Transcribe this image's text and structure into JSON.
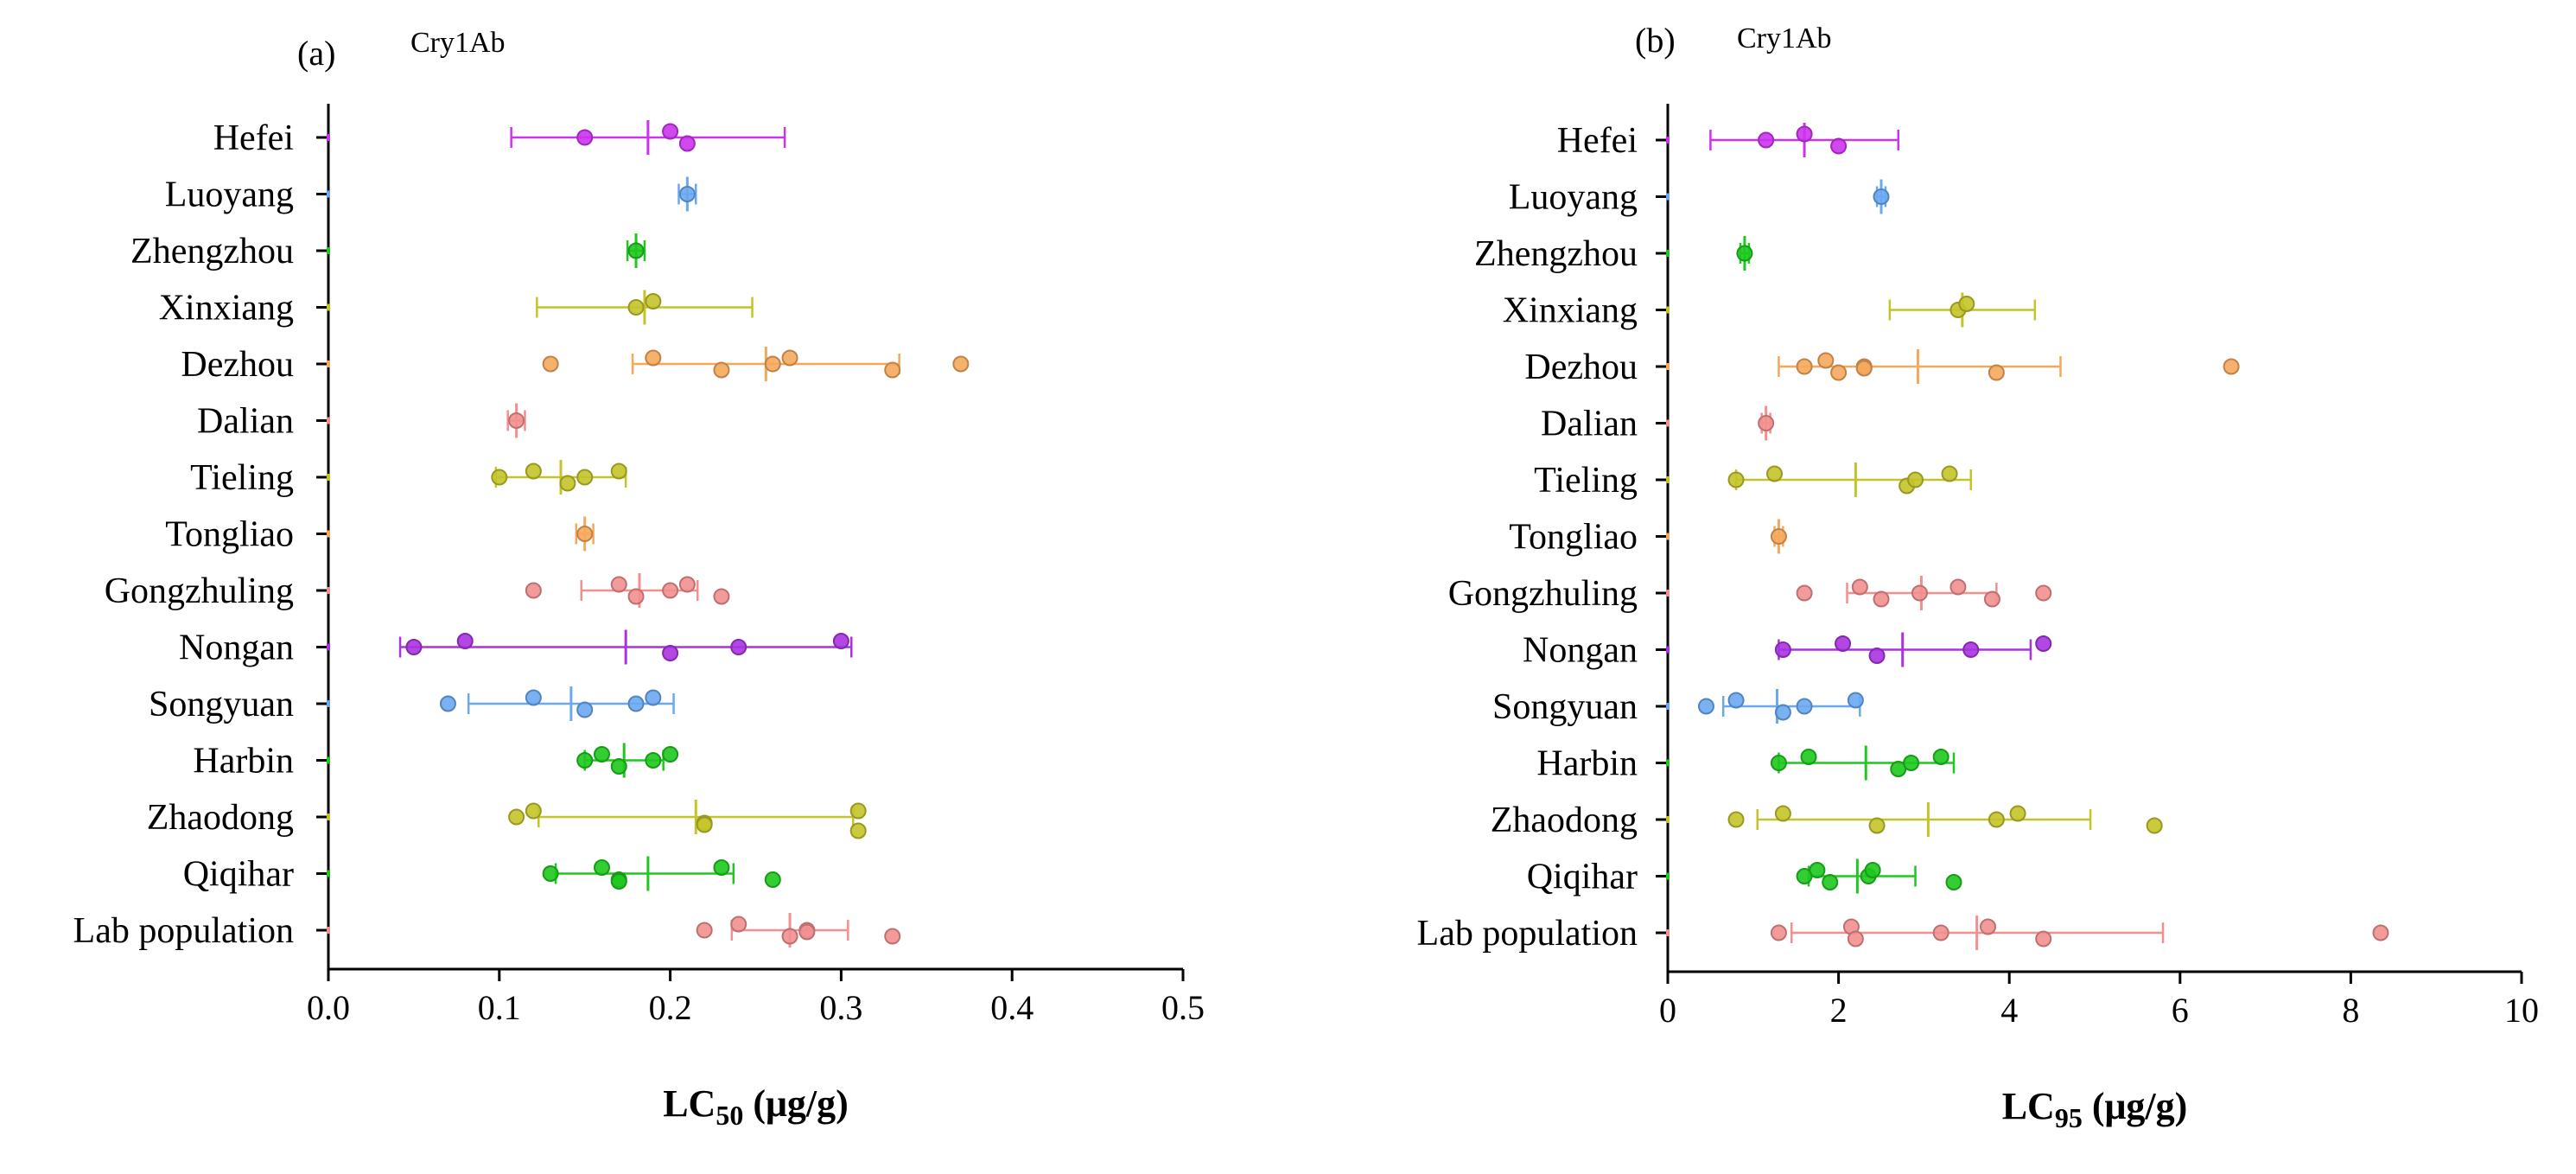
{
  "chart_data": [
    {
      "type": "scatter",
      "panel_label": "(a)",
      "subtitle": "Cry1Ab",
      "xlabel_main": "LC",
      "xlabel_sub": "50",
      "xlabel_units": " (μg/g)",
      "xlim": [
        0,
        0.5
      ],
      "xticks": [
        0,
        0.1,
        0.2,
        0.3,
        0.4,
        0.5
      ],
      "xtick_labels": [
        "0.0",
        "0.1",
        "0.2",
        "0.3",
        "0.4",
        "0.5"
      ],
      "categories": [
        "Hefei",
        "Luoyang",
        "Zhengzhou",
        "Xinxiang",
        "Dezhou",
        "Dalian",
        "Tieling",
        "Tongliao ",
        "Gongzhuling",
        "Nongan",
        "Songyuan",
        "Harbin",
        "Zhaodong",
        "Qiqihar",
        "Lab population"
      ],
      "series": [
        {
          "name": "Hefei",
          "color": "#cc33ee",
          "points": [
            0.15,
            0.2,
            0.21
          ],
          "mean": 0.187,
          "err": [
            0.107,
            0.267
          ]
        },
        {
          "name": "Luoyang",
          "color": "#6aa9f2",
          "points": [
            0.21
          ],
          "mean": 0.21,
          "err": [
            0.205,
            0.215
          ]
        },
        {
          "name": "Zhengzhou",
          "color": "#1ec81e",
          "points": [
            0.18
          ],
          "mean": 0.18,
          "err": [
            0.175,
            0.185
          ]
        },
        {
          "name": "Xinxiang",
          "color": "#c4c42a",
          "points": [
            0.18,
            0.19
          ],
          "mean": 0.185,
          "err": [
            0.122,
            0.248
          ]
        },
        {
          "name": "Dezhou",
          "color": "#f5a85c",
          "points": [
            0.13,
            0.19,
            0.23,
            0.26,
            0.27,
            0.33,
            0.37
          ],
          "mean": 0.256,
          "err": [
            0.178,
            0.334
          ]
        },
        {
          "name": "Dalian",
          "color": "#f29090",
          "points": [
            0.11
          ],
          "mean": 0.11,
          "err": [
            0.105,
            0.115
          ]
        },
        {
          "name": "Tieling",
          "color": "#c4c42a",
          "points": [
            0.1,
            0.12,
            0.14,
            0.15,
            0.17
          ],
          "mean": 0.136,
          "err": [
            0.098,
            0.174
          ]
        },
        {
          "name": "Tongliao",
          "color": "#f5a85c",
          "points": [
            0.15
          ],
          "mean": 0.15,
          "err": [
            0.145,
            0.155
          ]
        },
        {
          "name": "Gongzhuling",
          "color": "#f29090",
          "points": [
            0.12,
            0.17,
            0.18,
            0.2,
            0.21,
            0.23
          ],
          "mean": 0.182,
          "err": [
            0.148,
            0.216
          ]
        },
        {
          "name": "Nongan",
          "color": "#aa33e0",
          "points": [
            0.05,
            0.08,
            0.2,
            0.24,
            0.3
          ],
          "mean": 0.174,
          "err": [
            0.042,
            0.306
          ]
        },
        {
          "name": "Songyuan",
          "color": "#6aa9f2",
          "points": [
            0.07,
            0.12,
            0.15,
            0.18,
            0.19
          ],
          "mean": 0.142,
          "err": [
            0.082,
            0.202
          ]
        },
        {
          "name": "Harbin",
          "color": "#1ec81e",
          "points": [
            0.15,
            0.16,
            0.17,
            0.19,
            0.2
          ],
          "mean": 0.173,
          "err": [
            0.15,
            0.196
          ]
        },
        {
          "name": "Zhaodong",
          "color": "#c4c42a",
          "points": [
            0.11,
            0.12,
            0.22,
            0.22,
            0.31,
            0.31
          ],
          "mean": 0.215,
          "err": [
            0.123,
            0.307
          ]
        },
        {
          "name": "Qiqihar",
          "color": "#1ec81e",
          "points": [
            0.13,
            0.16,
            0.17,
            0.17,
            0.23,
            0.26
          ],
          "mean": 0.187,
          "err": [
            0.133,
            0.237
          ]
        },
        {
          "name": "Lab population",
          "color": "#f29090",
          "points": [
            0.22,
            0.24,
            0.27,
            0.28,
            0.28,
            0.33
          ],
          "mean": 0.27,
          "err": [
            0.236,
            0.304
          ]
        }
      ]
    },
    {
      "type": "scatter",
      "panel_label": "(b)",
      "subtitle": "Cry1Ab",
      "xlabel_main": "LC",
      "xlabel_sub": "95",
      "xlabel_units": " (μg/g)",
      "xlim": [
        0,
        10
      ],
      "xticks": [
        0,
        2,
        4,
        6,
        8,
        10
      ],
      "xtick_labels": [
        "0",
        "2",
        "4",
        "6",
        "8",
        "10"
      ],
      "categories": [
        "Hefei",
        "Luoyang",
        "Zhengzhou",
        "Xinxiang",
        "Dezhou",
        "Dalian",
        "Tieling",
        "Tongliao ",
        "Gongzhuling",
        "Nongan",
        "Songyuan",
        "Harbin",
        "Zhaodong",
        "Qiqihar",
        "Lab population"
      ],
      "series": [
        {
          "name": "Hefei",
          "color": "#cc33ee",
          "points": [
            1.15,
            1.6,
            2.0
          ],
          "mean": 1.6,
          "err": [
            0.5,
            2.7
          ]
        },
        {
          "name": "Luoyang",
          "color": "#6aa9f2",
          "points": [
            2.5
          ],
          "mean": 2.5,
          "err": [
            2.45,
            2.55
          ]
        },
        {
          "name": "Zhengzhou",
          "color": "#1ec81e",
          "points": [
            0.9
          ],
          "mean": 0.9,
          "err": [
            0.85,
            0.95
          ]
        },
        {
          "name": "Xinxiang",
          "color": "#c4c42a",
          "points": [
            3.4,
            3.5
          ],
          "mean": 3.45,
          "err": [
            2.6,
            4.3
          ]
        },
        {
          "name": "Dezhou",
          "color": "#f5a85c",
          "points": [
            1.6,
            1.85,
            2.0,
            2.3,
            2.3,
            3.85,
            6.6
          ],
          "mean": 2.93,
          "err": [
            1.3,
            4.6
          ]
        },
        {
          "name": "Dalian",
          "color": "#f29090",
          "points": [
            1.15
          ],
          "mean": 1.15,
          "err": [
            1.1,
            1.2
          ]
        },
        {
          "name": "Tieling",
          "color": "#c4c42a",
          "points": [
            0.8,
            1.25,
            2.8,
            2.9,
            3.3
          ],
          "mean": 2.2,
          "err": [
            0.8,
            3.55
          ]
        },
        {
          "name": "Tongliao",
          "color": "#f5a85c",
          "points": [
            1.3
          ],
          "mean": 1.3,
          "err": [
            1.25,
            1.35
          ]
        },
        {
          "name": "Gongzhuling",
          "color": "#f29090",
          "points": [
            1.6,
            2.25,
            2.5,
            2.95,
            3.4,
            3.8,
            4.4
          ],
          "mean": 2.97,
          "err": [
            2.1,
            3.85
          ]
        },
        {
          "name": "Nongan",
          "color": "#aa33e0",
          "points": [
            1.35,
            2.05,
            2.45,
            3.55,
            4.4
          ],
          "mean": 2.75,
          "err": [
            1.3,
            4.25
          ]
        },
        {
          "name": "Songyuan",
          "color": "#6aa9f2",
          "points": [
            0.45,
            0.8,
            1.35,
            1.6,
            2.2
          ],
          "mean": 1.28,
          "err": [
            0.65,
            2.25
          ]
        },
        {
          "name": "Harbin",
          "color": "#1ec81e",
          "points": [
            1.3,
            1.65,
            2.7,
            2.85,
            3.2
          ],
          "mean": 2.32,
          "err": [
            1.3,
            3.35
          ]
        },
        {
          "name": "Zhaodong",
          "color": "#c4c42a",
          "points": [
            0.8,
            1.35,
            2.45,
            3.85,
            4.1,
            5.7
          ],
          "mean": 3.05,
          "err": [
            1.05,
            4.95
          ]
        },
        {
          "name": "Qiqihar",
          "color": "#1ec81e",
          "points": [
            1.6,
            1.75,
            1.9,
            2.35,
            2.4,
            3.35
          ],
          "mean": 2.22,
          "err": [
            1.65,
            2.9
          ]
        },
        {
          "name": "Lab population",
          "color": "#f29090",
          "points": [
            1.3,
            2.15,
            2.2,
            3.2,
            3.75,
            4.4,
            8.35
          ],
          "mean": 3.62,
          "err": [
            1.45,
            5.8
          ]
        }
      ]
    }
  ]
}
